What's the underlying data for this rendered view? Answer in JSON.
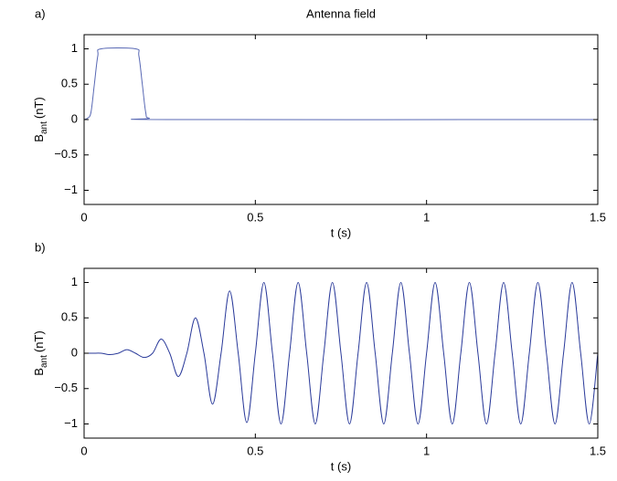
{
  "chart_data": [
    {
      "type": "line",
      "label": "a)",
      "title": "Antenna field",
      "xlabel": "t (s)",
      "ylabel": [
        "B",
        "ant",
        "(nT)"
      ],
      "x": [
        0,
        0.01,
        0.02,
        0.03,
        0.04,
        0.05,
        0.15,
        0.16,
        0.17,
        0.18,
        0.19,
        0.25,
        1.5
      ],
      "series": [
        {
          "color": "#5868b4",
          "values": [
            0,
            0.02,
            0.1,
            0.5,
            0.9,
            1,
            1,
            0.9,
            0.5,
            0.1,
            0.02,
            0,
            0
          ]
        }
      ],
      "xlim": [
        0,
        1.5
      ],
      "ylim": [
        -1.2,
        1.2
      ],
      "xticks": [
        0,
        0.5,
        1,
        1.5
      ],
      "yticks": [
        -1,
        -0.5,
        0,
        0.5,
        1
      ]
    },
    {
      "type": "line",
      "label": "b)",
      "xlabel": "t (s)",
      "ylabel": [
        "B",
        "ant",
        "(nT)"
      ],
      "x": [
        0,
        0.025,
        0.05,
        0.075,
        0.1,
        0.125,
        0.15,
        0.175,
        0.2,
        0.225,
        0.25,
        0.275,
        0.3,
        0.325,
        0.35,
        0.375,
        0.4,
        0.425,
        0.45,
        0.475,
        0.5,
        0.525,
        0.55,
        0.575,
        0.6,
        0.625,
        0.65,
        0.675,
        0.7,
        0.725,
        0.75,
        0.775,
        0.8,
        0.825,
        0.85,
        0.875,
        0.9,
        0.925,
        0.95,
        0.975,
        1,
        1.025,
        1.05,
        1.075,
        1.1,
        1.125,
        1.15,
        1.175,
        1.2,
        1.225,
        1.25,
        1.275,
        1.3,
        1.325,
        1.35,
        1.375,
        1.4,
        1.425,
        1.45,
        1.475,
        1.5
      ],
      "series": [
        {
          "color": "#2a3a9a",
          "values": [
            0,
            0,
            0,
            -0.02,
            0,
            0.05,
            0,
            -0.06,
            0,
            0.2,
            0,
            -0.33,
            0,
            0.5,
            0,
            -0.72,
            0,
            0.88,
            0,
            -0.98,
            0,
            1,
            0,
            -1,
            0,
            1,
            0,
            -1,
            0,
            1,
            0,
            -1,
            0,
            1,
            0,
            -1,
            0,
            1,
            0,
            -1,
            0,
            1,
            0,
            -1,
            0,
            1,
            0,
            -1,
            0,
            1,
            0,
            -1,
            0,
            1,
            0,
            -1,
            0,
            1,
            0,
            -1,
            0
          ]
        }
      ],
      "xlim": [
        0,
        1.5
      ],
      "ylim": [
        -1.2,
        1.2
      ],
      "xticks": [
        0,
        0.5,
        1,
        1.5
      ],
      "yticks": [
        -1,
        -0.5,
        0,
        0.5,
        1
      ]
    }
  ]
}
